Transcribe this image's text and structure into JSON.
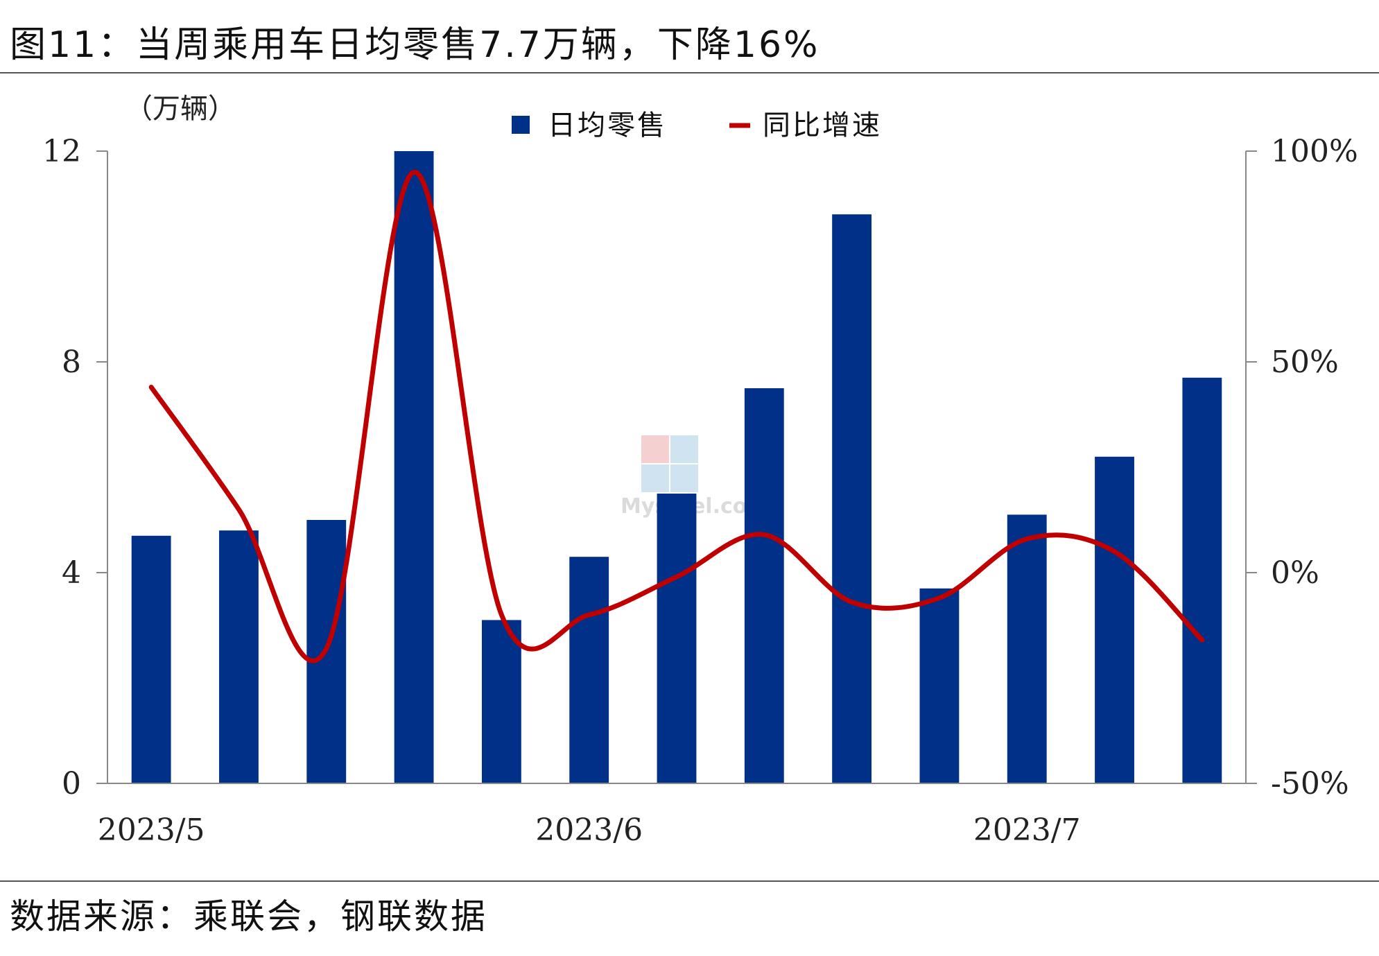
{
  "title": "图11：当周乘用车日均零售7.7万辆，下降16%",
  "source": "数据来源：乘联会，钢联数据",
  "chart_data": {
    "type": "bar",
    "unit_label": "（万辆）",
    "legend": [
      {
        "label": "日均零售",
        "kind": "bar",
        "color": "#003087"
      },
      {
        "label": "同比增速",
        "kind": "line",
        "color": "#C00000"
      }
    ],
    "legend_position": "top-center",
    "y_left": {
      "ticks": [
        "0",
        "4",
        "8",
        "12"
      ],
      "range": [
        0,
        12
      ]
    },
    "y_right": {
      "ticks": [
        "-50%",
        "0%",
        "50%",
        "100%"
      ],
      "range": [
        -0.5,
        1.0
      ]
    },
    "x_labels": [
      {
        "label": "2023/5",
        "index": 0
      },
      {
        "label": "2023/6",
        "index": 5
      },
      {
        "label": "2023/7",
        "index": 10
      }
    ],
    "series": [
      {
        "name": "日均零售",
        "type": "bar",
        "axis": "left",
        "values": [
          4.7,
          4.8,
          5.0,
          12.0,
          3.1,
          4.3,
          5.5,
          7.5,
          10.8,
          3.7,
          5.1,
          6.2,
          7.7
        ]
      },
      {
        "name": "同比增速",
        "type": "line",
        "axis": "right",
        "values": [
          0.44,
          0.15,
          -0.18,
          0.95,
          -0.1,
          -0.1,
          -0.01,
          0.09,
          -0.07,
          -0.06,
          0.08,
          0.05,
          -0.16
        ]
      }
    ],
    "grid": false
  }
}
